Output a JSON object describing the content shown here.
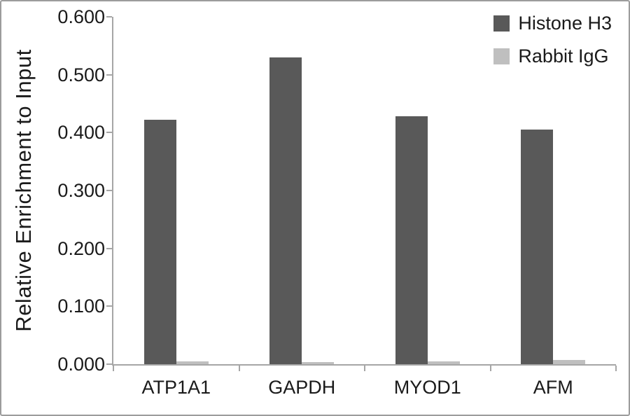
{
  "figure": {
    "background": "#ffffff",
    "border_color": "#9c9c9c"
  },
  "style": {
    "axis_color": "#a6a6a6",
    "text_color": "#1a1a1a"
  },
  "chart_data": {
    "type": "bar",
    "title": "",
    "xlabel": "",
    "ylabel": "Relative Enrichment to Input",
    "categories": [
      "ATP1A1",
      "GAPDH",
      "MYOD1",
      "AFM"
    ],
    "series": [
      {
        "name": "Histone H3",
        "color": "#595959",
        "values": [
          0.422,
          0.53,
          0.428,
          0.405
        ]
      },
      {
        "name": "Rabbit IgG",
        "color": "#bfbfbf",
        "values": [
          0.005,
          0.004,
          0.005,
          0.007
        ]
      }
    ],
    "ylim": [
      0.0,
      0.6
    ],
    "ytick_step": 0.1,
    "ytick_decimals": 3,
    "grid": false,
    "legend_position": "top-right"
  }
}
